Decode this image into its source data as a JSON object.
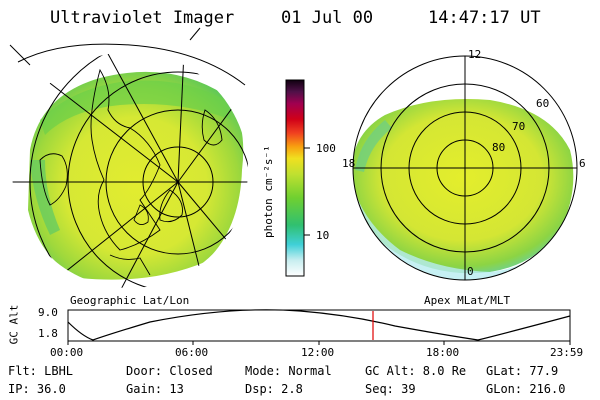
{
  "header": {
    "title": "Ultraviolet Imager",
    "date": "01 Jul 00",
    "time": "14:47:17 UT"
  },
  "left_map": {
    "label": "Geographic Lat/Lon"
  },
  "right_map": {
    "label": "Apex MLat/MLT",
    "mlt_labels": {
      "top": "12",
      "left": "18",
      "right": "6",
      "bottom": "0"
    },
    "lat_labels": [
      "60",
      "70",
      "80"
    ]
  },
  "colorbar": {
    "unit_label": "photon cm⁻²s⁻¹",
    "tick_100": "100",
    "tick_10": "10"
  },
  "altitude_plot": {
    "ylabel": "GC Alt",
    "y_max": "9.0",
    "y_min": "1.8",
    "x_ticks": [
      "00:00",
      "06:00",
      "12:00",
      "18:00",
      "23:59"
    ]
  },
  "info": {
    "flt": "Flt: LBHL",
    "ip": "IP: 36.0",
    "door": "Door: Closed",
    "gain": "Gain: 13",
    "mode": "Mode: Normal",
    "dsp": "Dsp:    2.8",
    "gc_alt": "GC Alt: 8.0 Re",
    "seq": "Seq: 39",
    "glat": "GLat:  77.9",
    "glon": "GLon: 216.0"
  },
  "colors": {
    "aurora_yellow": "#d8e830",
    "aurora_green": "#78d040",
    "aurora_cyan": "#58d8d8",
    "time_marker": "#e00000"
  }
}
